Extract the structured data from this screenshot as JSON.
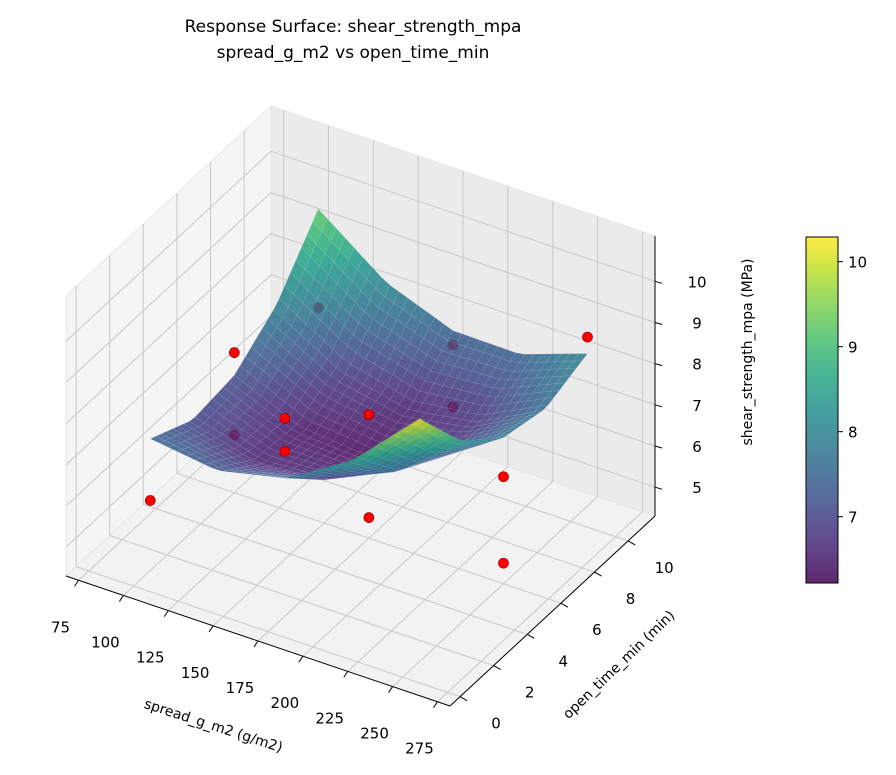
{
  "chart_data": {
    "type": "surface3d",
    "title": "Response Surface: shear_strength_mpa",
    "subtitle": "spread_g_m2 vs open_time_min",
    "xlabel": "spread_g_m2 (g/m2)",
    "ylabel": "open_time_min (min)",
    "zlabel": "shear_strength_mpa (MPa)",
    "xlim": [
      68,
      282
    ],
    "ylim": [
      -0.6,
      11.6
    ],
    "zlim": [
      4.3,
      11.1
    ],
    "xticks": [
      "75",
      "100",
      "125",
      "150",
      "175",
      "200",
      "225",
      "250",
      "275"
    ],
    "yticks": [
      "0",
      "2",
      "4",
      "6",
      "8",
      "10"
    ],
    "zticks": [
      "5",
      "6",
      "7",
      "8",
      "9",
      "10"
    ],
    "grid": true,
    "colormap": "viridis",
    "surface_alpha": 0.85,
    "surface": {
      "x": [
        100,
        137.5,
        175,
        212.5,
        250
      ],
      "y": [
        1,
        3.5,
        6,
        8.5,
        11
      ],
      "z": [
        [
          7.5,
          7.28,
          7.65,
          8.63,
          10.2
        ],
        [
          7.01,
          6.54,
          6.66,
          7.39,
          8.71
        ],
        [
          7.15,
          6.43,
          6.3,
          6.78,
          7.85
        ],
        [
          7.91,
          6.94,
          6.56,
          6.79,
          7.61
        ],
        [
          9.3,
          8.08,
          7.45,
          7.43,
          8.0
        ]
      ]
    },
    "points_color": "#ff0000",
    "points": [
      {
        "x": 100,
        "y": 1,
        "z": 6.0
      },
      {
        "x": 175,
        "y": 6,
        "z": 4.8
      },
      {
        "x": 250,
        "y": 6,
        "z": 4.8
      },
      {
        "x": 250,
        "y": 11,
        "z": 8.4
      },
      {
        "x": 100,
        "y": 6,
        "z": 7.7
      },
      {
        "x": 100,
        "y": 11,
        "z": 6.9
      },
      {
        "x": 175,
        "y": 11,
        "z": 7.1
      },
      {
        "x": 175,
        "y": 11,
        "z": 5.6
      },
      {
        "x": 175,
        "y": 6,
        "z": 7.3
      },
      {
        "x": 175,
        "y": 1,
        "z": 9.1
      },
      {
        "x": 100,
        "y": 6,
        "z": 5.7
      },
      {
        "x": 250,
        "y": 6,
        "z": 6.9
      },
      {
        "x": 175,
        "y": 1,
        "z": 8.3
      }
    ],
    "colorbar": {
      "range": [
        6.22,
        10.29
      ],
      "ticks": [
        "7",
        "8",
        "9",
        "10"
      ]
    }
  }
}
